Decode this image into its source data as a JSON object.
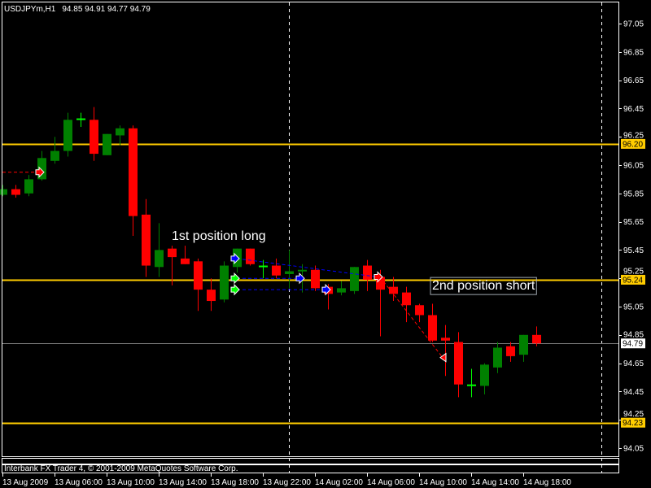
{
  "header": {
    "symbol": "USDJPYm,H1",
    "ohlc": "94.85 94.91 94.77 94.79"
  },
  "footer": {
    "copyright": "Interbank FX Trader 4, © 2001-2009 MetaQuotes Software Corp."
  },
  "colors": {
    "background": "#000000",
    "bull": "#008000",
    "bear": "#ff0000",
    "level_line": "#ffcc00",
    "bid_line": "#808080",
    "axis": "#ffffff"
  },
  "chart_data": {
    "type": "candlestick",
    "title": "",
    "timeframe": "H1",
    "ylim": [
      94.0,
      97.1
    ],
    "y_ticks": [
      "97.05",
      "96.85",
      "96.65",
      "96.45",
      "96.25",
      "96.05",
      "95.85",
      "95.65",
      "95.45",
      "95.25",
      "95.05",
      "94.85",
      "94.65",
      "94.45",
      "94.25",
      "94.05"
    ],
    "x_ticks": [
      {
        "bar": 0,
        "label": "13 Aug 2009"
      },
      {
        "bar": 4,
        "label": "13 Aug 06:00"
      },
      {
        "bar": 8,
        "label": "13 Aug 10:00"
      },
      {
        "bar": 12,
        "label": "13 Aug 14:00"
      },
      {
        "bar": 16,
        "label": "13 Aug 18:00"
      },
      {
        "bar": 20,
        "label": "13 Aug 22:00"
      },
      {
        "bar": 24,
        "label": "14 Aug 02:00"
      },
      {
        "bar": 28,
        "label": "14 Aug 06:00"
      },
      {
        "bar": 32,
        "label": "14 Aug 10:00"
      },
      {
        "bar": 36,
        "label": "14 Aug 14:00"
      },
      {
        "bar": 40,
        "label": "14 Aug 18:00"
      }
    ],
    "candles_ohlc": [
      [
        95.84,
        95.91,
        95.83,
        95.88
      ],
      [
        95.88,
        95.91,
        95.82,
        95.84
      ],
      [
        95.85,
        95.98,
        95.83,
        95.95
      ],
      [
        95.95,
        96.15,
        95.94,
        96.1
      ],
      [
        96.08,
        96.25,
        96.06,
        96.15
      ],
      [
        96.15,
        96.42,
        96.11,
        96.37
      ],
      [
        96.38,
        96.42,
        96.32,
        96.38
      ],
      [
        96.37,
        96.46,
        96.08,
        96.13
      ],
      [
        96.12,
        96.27,
        96.12,
        96.27
      ],
      [
        96.26,
        96.33,
        96.19,
        96.31
      ],
      [
        96.31,
        96.33,
        95.55,
        95.69
      ],
      [
        95.7,
        95.81,
        95.26,
        95.34
      ],
      [
        95.33,
        95.64,
        95.26,
        95.45
      ],
      [
        95.46,
        95.48,
        95.2,
        95.4
      ],
      [
        95.39,
        95.48,
        95.35,
        95.35
      ],
      [
        95.37,
        95.39,
        95.02,
        95.17
      ],
      [
        95.17,
        95.25,
        95.02,
        95.09
      ],
      [
        95.1,
        95.37,
        95.08,
        95.34
      ],
      [
        95.33,
        95.46,
        95.29,
        95.46
      ],
      [
        95.46,
        95.46,
        95.34,
        95.35
      ],
      [
        95.34,
        95.38,
        95.25,
        95.34
      ],
      [
        95.34,
        95.39,
        95.25,
        95.27
      ],
      [
        95.28,
        95.45,
        95.18,
        95.3
      ],
      [
        95.3,
        95.35,
        95.15,
        95.31
      ],
      [
        95.31,
        95.34,
        95.16,
        95.18
      ],
      [
        95.19,
        95.21,
        95.03,
        95.14
      ],
      [
        95.15,
        95.23,
        95.13,
        95.18
      ],
      [
        95.16,
        95.33,
        95.14,
        95.33
      ],
      [
        95.34,
        95.38,
        95.16,
        95.24
      ],
      [
        95.26,
        95.31,
        94.84,
        95.17
      ],
      [
        95.19,
        95.26,
        95.09,
        95.14
      ],
      [
        95.15,
        95.19,
        94.94,
        95.06
      ],
      [
        95.06,
        95.07,
        94.94,
        94.99
      ],
      [
        94.99,
        95.07,
        94.8,
        94.81
      ],
      [
        94.83,
        94.92,
        94.56,
        94.81
      ],
      [
        94.8,
        94.87,
        94.41,
        94.5
      ],
      [
        94.5,
        94.61,
        94.41,
        94.5
      ],
      [
        94.49,
        94.65,
        94.43,
        94.64
      ],
      [
        94.62,
        94.8,
        94.58,
        94.76
      ],
      [
        94.77,
        94.8,
        94.66,
        94.7
      ],
      [
        94.71,
        94.85,
        94.66,
        94.85
      ],
      [
        94.85,
        94.91,
        94.77,
        94.79
      ]
    ],
    "horizontal_levels": [
      {
        "price": 96.2,
        "label": "96.20"
      },
      {
        "price": 95.24,
        "label": "95.24"
      },
      {
        "price": 94.23,
        "label": "94.23"
      }
    ],
    "bid": {
      "price": 94.79,
      "label": "94.79"
    },
    "period_separators_bar": [
      22,
      46
    ],
    "trade_arrows": [
      {
        "bar": 3,
        "price": 96.0,
        "color": "#ff0000",
        "direction": "right"
      },
      {
        "bar": 18,
        "price": 95.39,
        "color": "#0000ff",
        "direction": "right"
      },
      {
        "bar": 18,
        "price": 95.25,
        "color": "#00ff00",
        "direction": "right"
      },
      {
        "bar": 18,
        "price": 95.17,
        "color": "#00ff00",
        "direction": "right"
      },
      {
        "bar": 23,
        "price": 95.25,
        "color": "#0000ff",
        "direction": "right"
      },
      {
        "bar": 25,
        "price": 95.17,
        "color": "#0000ff",
        "direction": "right"
      },
      {
        "bar": 29,
        "price": 95.26,
        "color": "#ff0000",
        "direction": "right"
      },
      {
        "bar": 34,
        "price": 94.69,
        "color": "#ff0000",
        "direction": "left"
      }
    ],
    "trade_lines": [
      {
        "from": [
          0,
          96.0
        ],
        "to": [
          3,
          96.0
        ],
        "color": "#ff0000"
      },
      {
        "from": [
          18,
          95.39
        ],
        "to": [
          29,
          95.26
        ],
        "color": "#0000ff"
      },
      {
        "from": [
          18,
          95.25
        ],
        "to": [
          23,
          95.25
        ],
        "color": "#0000ff"
      },
      {
        "from": [
          18,
          95.17
        ],
        "to": [
          25,
          95.17
        ],
        "color": "#0000ff"
      },
      {
        "from": [
          29,
          95.26
        ],
        "to": [
          34,
          94.69
        ],
        "color": "#ff0000"
      }
    ],
    "annotations": [
      {
        "text": "1st position long",
        "bar": 13,
        "price": 95.52,
        "boxed": false
      },
      {
        "text": "2nd position short",
        "bar": 33,
        "price": 95.17,
        "boxed": true
      }
    ]
  }
}
